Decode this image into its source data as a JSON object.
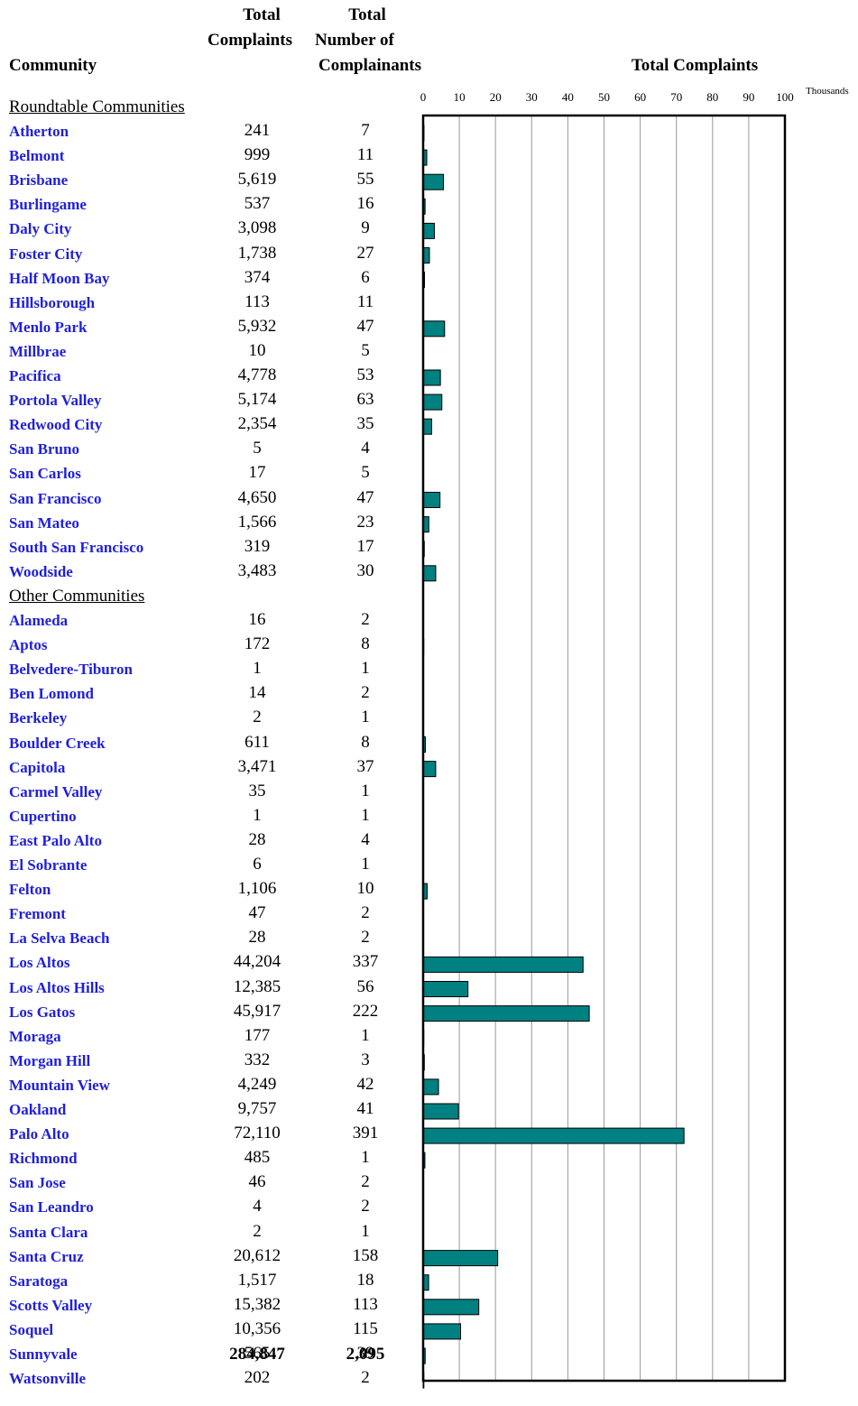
{
  "headers": {
    "community": "Community",
    "total_complaints_line1": "Total",
    "total_complaints_line2": "Complaints",
    "complainants_line1": "Total",
    "complainants_line2": "Number of",
    "complainants_line3": "Complainants",
    "chart_title": "Total Complaints"
  },
  "sections": [
    {
      "title": "Roundtable Communities",
      "rows": [
        {
          "name": "Atherton",
          "complaints": "241",
          "complainants": "7"
        },
        {
          "name": "Belmont",
          "complaints": "999",
          "complainants": "11"
        },
        {
          "name": "Brisbane",
          "complaints": "5,619",
          "complainants": "55"
        },
        {
          "name": "Burlingame",
          "complaints": "537",
          "complainants": "16"
        },
        {
          "name": "Daly City",
          "complaints": "3,098",
          "complainants": "9"
        },
        {
          "name": "Foster City",
          "complaints": "1,738",
          "complainants": "27"
        },
        {
          "name": "Half Moon Bay",
          "complaints": "374",
          "complainants": "6"
        },
        {
          "name": "Hillsborough",
          "complaints": "113",
          "complainants": "11"
        },
        {
          "name": "Menlo Park",
          "complaints": "5,932",
          "complainants": "47"
        },
        {
          "name": "Millbrae",
          "complaints": "10",
          "complainants": "5"
        },
        {
          "name": "Pacifica",
          "complaints": "4,778",
          "complainants": "53"
        },
        {
          "name": "Portola Valley",
          "complaints": "5,174",
          "complainants": "63"
        },
        {
          "name": "Redwood City",
          "complaints": "2,354",
          "complainants": "35"
        },
        {
          "name": "San Bruno",
          "complaints": "5",
          "complainants": "4"
        },
        {
          "name": "San Carlos",
          "complaints": "17",
          "complainants": "5"
        },
        {
          "name": "San Francisco",
          "complaints": "4,650",
          "complainants": "47"
        },
        {
          "name": "San Mateo",
          "complaints": "1,566",
          "complainants": "23"
        },
        {
          "name": "South San Francisco",
          "complaints": "319",
          "complainants": "17"
        },
        {
          "name": "Woodside",
          "complaints": "3,483",
          "complainants": "30"
        }
      ]
    },
    {
      "title": "Other Communities",
      "rows": [
        {
          "name": "Alameda",
          "complaints": "16",
          "complainants": "2"
        },
        {
          "name": "Aptos",
          "complaints": "172",
          "complainants": "8"
        },
        {
          "name": "Belvedere-Tiburon",
          "complaints": "1",
          "complainants": "1"
        },
        {
          "name": "Ben Lomond",
          "complaints": "14",
          "complainants": "2"
        },
        {
          "name": "Berkeley",
          "complaints": "2",
          "complainants": "1"
        },
        {
          "name": "Boulder Creek",
          "complaints": "611",
          "complainants": "8"
        },
        {
          "name": "Capitola",
          "complaints": "3,471",
          "complainants": "37"
        },
        {
          "name": "Carmel Valley",
          "complaints": "35",
          "complainants": "1"
        },
        {
          "name": "Cupertino",
          "complaints": "1",
          "complainants": "1"
        },
        {
          "name": "East Palo Alto",
          "complaints": "28",
          "complainants": "4"
        },
        {
          "name": "El Sobrante",
          "complaints": "6",
          "complainants": "1"
        },
        {
          "name": "Felton",
          "complaints": "1,106",
          "complainants": "10"
        },
        {
          "name": "Fremont",
          "complaints": "47",
          "complainants": "2"
        },
        {
          "name": "La Selva Beach",
          "complaints": "28",
          "complainants": "2"
        },
        {
          "name": "Los Altos",
          "complaints": "44,204",
          "complainants": "337"
        },
        {
          "name": "Los Altos Hills",
          "complaints": "12,385",
          "complainants": "56"
        },
        {
          "name": "Los Gatos",
          "complaints": "45,917",
          "complainants": "222"
        },
        {
          "name": "Moraga",
          "complaints": "177",
          "complainants": "1"
        },
        {
          "name": "Morgan Hill",
          "complaints": "332",
          "complainants": "3"
        },
        {
          "name": "Mountain View",
          "complaints": "4,249",
          "complainants": "42"
        },
        {
          "name": "Oakland",
          "complaints": "9,757",
          "complainants": "41"
        },
        {
          "name": "Palo Alto",
          "complaints": "72,110",
          "complainants": "391"
        },
        {
          "name": "Richmond",
          "complaints": "485",
          "complainants": "1"
        },
        {
          "name": "San Jose",
          "complaints": "46",
          "complainants": "2"
        },
        {
          "name": "San Leandro",
          "complaints": "4",
          "complainants": "2"
        },
        {
          "name": "Santa Clara",
          "complaints": "2",
          "complainants": "1"
        },
        {
          "name": "Santa Cruz",
          "complaints": "20,612",
          "complainants": "158"
        },
        {
          "name": "Saratoga",
          "complaints": "1,517",
          "complainants": "18"
        },
        {
          "name": "Scotts Valley",
          "complaints": "15,382",
          "complainants": "113"
        },
        {
          "name": "Soquel",
          "complaints": "10,356",
          "complainants": "115"
        },
        {
          "name": "Sunnyvale",
          "complaints": "565",
          "complainants": "39"
        },
        {
          "name": "Watsonville",
          "complaints": "202",
          "complainants": "2"
        }
      ]
    }
  ],
  "totals": {
    "complaints": "284,847",
    "complainants": "2,095"
  },
  "chart_data": {
    "type": "bar",
    "orientation": "horizontal",
    "title": "Total Complaints",
    "xlabel": "Thousands",
    "xlim": [
      0,
      100
    ],
    "xticks": [
      0,
      10,
      20,
      30,
      40,
      50,
      60,
      70,
      80,
      90,
      100
    ],
    "grid": true,
    "bar_color": "#008080",
    "categories": [
      "Atherton",
      "Belmont",
      "Brisbane",
      "Burlingame",
      "Daly City",
      "Foster City",
      "Half Moon Bay",
      "Hillsborough",
      "Menlo Park",
      "Millbrae",
      "Pacifica",
      "Portola Valley",
      "Redwood City",
      "San Bruno",
      "San Carlos",
      "San Francisco",
      "San Mateo",
      "South San Francisco",
      "Woodside",
      "Alameda",
      "Aptos",
      "Belvedere-Tiburon",
      "Ben Lomond",
      "Berkeley",
      "Boulder Creek",
      "Capitola",
      "Carmel Valley",
      "Cupertino",
      "East Palo Alto",
      "El Sobrante",
      "Felton",
      "Fremont",
      "La Selva Beach",
      "Los Altos",
      "Los Altos Hills",
      "Los Gatos",
      "Moraga",
      "Morgan Hill",
      "Mountain View",
      "Oakland",
      "Palo Alto",
      "Richmond",
      "San Jose",
      "San Leandro",
      "Santa Clara",
      "Santa Cruz",
      "Saratoga",
      "Scotts Valley",
      "Soquel",
      "Sunnyvale",
      "Watsonville"
    ],
    "values": [
      0.241,
      0.999,
      5.619,
      0.537,
      3.098,
      1.738,
      0.374,
      0.113,
      5.932,
      0.01,
      4.778,
      5.174,
      2.354,
      0.005,
      0.017,
      4.65,
      1.566,
      0.319,
      3.483,
      0.016,
      0.172,
      0.001,
      0.014,
      0.002,
      0.611,
      3.471,
      0.035,
      0.001,
      0.028,
      0.006,
      1.106,
      0.047,
      0.028,
      44.204,
      12.385,
      45.917,
      0.177,
      0.332,
      4.249,
      9.757,
      72.11,
      0.485,
      0.046,
      0.004,
      0.002,
      20.612,
      1.517,
      15.382,
      10.356,
      0.565,
      0.202
    ]
  }
}
